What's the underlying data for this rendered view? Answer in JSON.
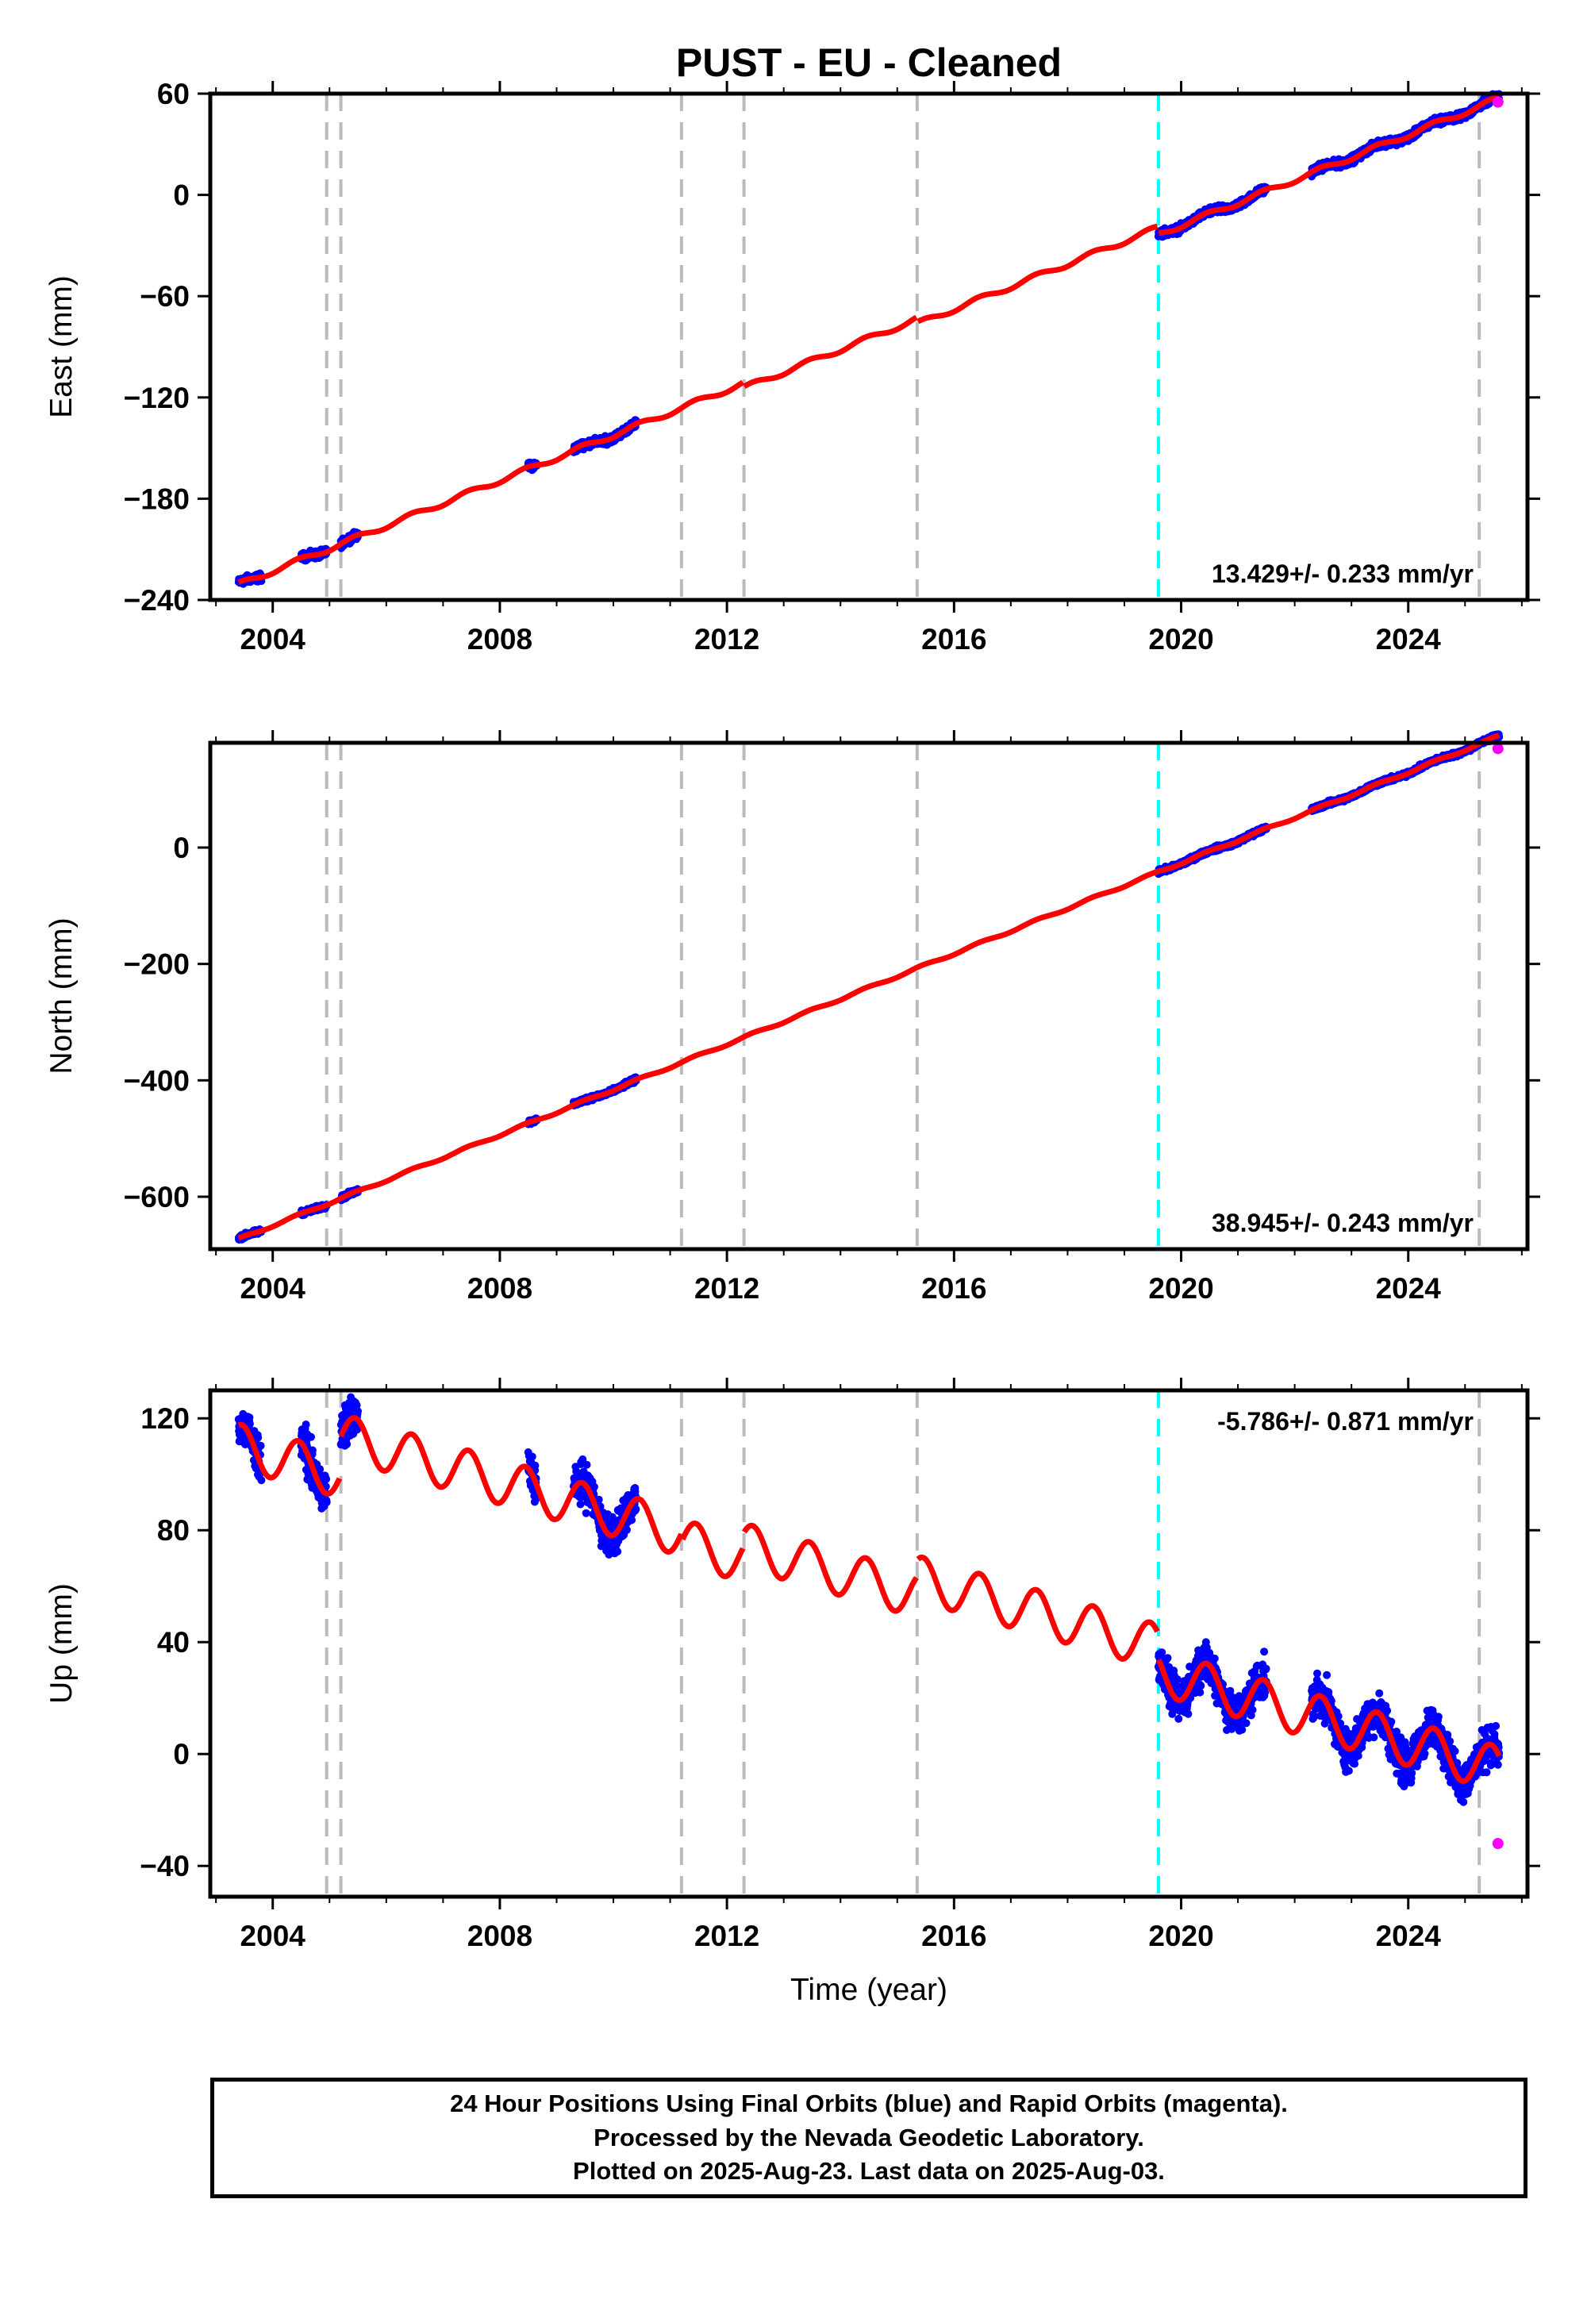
{
  "title": "PUST  - EU - Cleaned",
  "footer": {
    "line1": "24 Hour Positions Using Final Orbits (blue) and Rapid Orbits (magenta).",
    "line2": "Processed by the Nevada Geodetic Laboratory.",
    "line3": "Plotted on 2025-Aug-23. Last data on 2025-Aug-03."
  },
  "colors": {
    "final_orbits": "#0000ff",
    "rapid_orbits": "#ff00ff",
    "model": "#ff0000",
    "offset_line_gray": "#bbbbbb",
    "offset_line_cyan": "#00ffff"
  },
  "chart_data": [
    {
      "type": "scatter",
      "component": "east",
      "xlabel": "",
      "ylabel": "East (mm)",
      "xlim": [
        2002.9,
        2026.1
      ],
      "ylim": [
        -240,
        60
      ],
      "xticks": [
        "2004",
        "2008",
        "2012",
        "2016",
        "2020",
        "2024"
      ],
      "yticks": [
        "-240",
        "-180",
        "-120",
        "-60",
        "0",
        "60"
      ],
      "rate_label": "13.429+/- 0.233 mm/yr",
      "rate_position": "bottom-right",
      "offset_lines_gray": [
        2004.95,
        2005.2,
        2011.2,
        2012.3,
        2015.35,
        2025.25
      ],
      "offset_lines_cyan": [
        2019.6
      ],
      "model": {
        "t0": 2003.4,
        "y0": -231,
        "rate": 13.429,
        "annual_amp": 1.5,
        "offsets": [
          {
            "t": 2019.6,
            "dy": -4
          },
          {
            "t": 2015.35,
            "dy": -3
          },
          {
            "t": 2012.3,
            "dy": -3
          }
        ],
        "end": 2025.6
      },
      "data_spans": [
        [
          2003.4,
          2003.8
        ],
        [
          2004.5,
          2004.95
        ],
        [
          2005.2,
          2005.5
        ],
        [
          2008.5,
          2008.65
        ],
        [
          2009.3,
          2010.4
        ],
        [
          2019.6,
          2021.5
        ],
        [
          2022.3,
          2025.6
        ]
      ],
      "scatter_spread": 2.2,
      "rapid_last": {
        "x": 2025.58,
        "y": 55
      }
    },
    {
      "type": "scatter",
      "component": "north",
      "xlabel": "",
      "ylabel": "North (mm)",
      "xlim": [
        2002.9,
        2026.1
      ],
      "ylim": [
        -690,
        180
      ],
      "xticks": [
        "2004",
        "2008",
        "2012",
        "2016",
        "2020",
        "2024"
      ],
      "yticks": [
        "-600",
        "-400",
        "-200",
        "0"
      ],
      "rate_label": "38.945+/- 0.243 mm/yr",
      "rate_position": "bottom-right",
      "offset_lines_gray": [
        2004.95,
        2005.2,
        2011.2,
        2012.3,
        2015.35,
        2025.25
      ],
      "offset_lines_cyan": [
        2019.6
      ],
      "model": {
        "t0": 2003.4,
        "y0": -673,
        "rate": 38.945,
        "annual_amp": 2,
        "offsets": [],
        "end": 2025.6
      },
      "data_spans": [
        [
          2003.4,
          2003.8
        ],
        [
          2004.5,
          2004.95
        ],
        [
          2005.2,
          2005.5
        ],
        [
          2008.5,
          2008.65
        ],
        [
          2009.3,
          2010.4
        ],
        [
          2019.6,
          2021.5
        ],
        [
          2022.3,
          2025.6
        ]
      ],
      "scatter_spread": 4,
      "rapid_last": {
        "x": 2025.58,
        "y": 170
      }
    },
    {
      "type": "scatter",
      "component": "up",
      "xlabel": "Time (year)",
      "ylabel": "Up (mm)",
      "xlim": [
        2002.9,
        2026.1
      ],
      "ylim": [
        -51,
        130
      ],
      "xticks": [
        "2004",
        "2008",
        "2012",
        "2016",
        "2020",
        "2024"
      ],
      "yticks": [
        "-40",
        "0",
        "40",
        "80",
        "120"
      ],
      "rate_label": "-5.786+/- 0.871 mm/yr",
      "rate_position": "top-right",
      "offset_lines_gray": [
        2004.95,
        2005.2,
        2011.2,
        2012.3,
        2015.35,
        2025.25
      ],
      "offset_lines_cyan": [
        2019.6
      ],
      "model": {
        "t0": 2003.4,
        "y0": 110,
        "rate": -5.786,
        "annual_amp": 8,
        "offsets": [
          {
            "t": 2005.2,
            "dy": 14
          },
          {
            "t": 2011.2,
            "dy": -3
          },
          {
            "t": 2012.3,
            "dy": 5
          },
          {
            "t": 2015.35,
            "dy": 6
          },
          {
            "t": 2019.6,
            "dy": -9
          }
        ],
        "end": 2025.6
      },
      "data_spans": [
        [
          2003.4,
          2003.8
        ],
        [
          2004.5,
          2004.95
        ],
        [
          2005.2,
          2005.5
        ],
        [
          2008.5,
          2008.65
        ],
        [
          2009.3,
          2010.4
        ],
        [
          2019.6,
          2021.5
        ],
        [
          2022.3,
          2025.6
        ]
      ],
      "scatter_spread": 7,
      "rapid_last": {
        "x": 2025.58,
        "y": -32
      }
    }
  ]
}
